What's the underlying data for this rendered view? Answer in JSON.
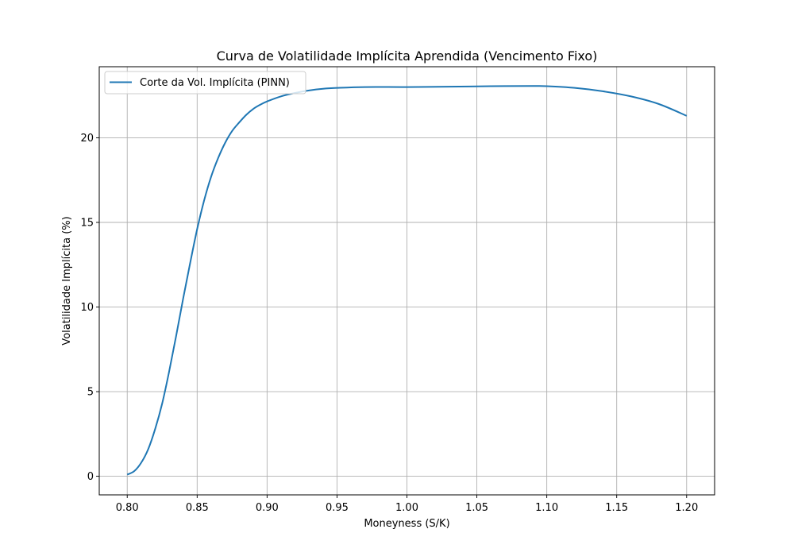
{
  "chart_data": {
    "type": "line",
    "title": "Curva de Volatilidade Implícita Aprendida (Vencimento Fixo)",
    "xlabel": "Moneyness (S/K)",
    "ylabel": "Volatilidade Implícita (%)",
    "xlim": [
      0.78,
      1.22
    ],
    "ylim": [
      -1.1,
      24.2
    ],
    "x_ticks": [
      0.8,
      0.85,
      0.9,
      0.95,
      1.0,
      1.05,
      1.1,
      1.15,
      1.2
    ],
    "x_tick_labels": [
      "0.80",
      "0.85",
      "0.90",
      "0.95",
      "1.00",
      "1.05",
      "1.10",
      "1.15",
      "1.20"
    ],
    "y_ticks": [
      0,
      5,
      10,
      15,
      20
    ],
    "y_tick_labels": [
      "0",
      "5",
      "10",
      "15",
      "20"
    ],
    "grid": true,
    "legend_position": "upper-left",
    "series": [
      {
        "name": "Corte da Vol. Implícita (PINN)",
        "color": "#1f77b4",
        "x": [
          0.8,
          0.805,
          0.81,
          0.815,
          0.82,
          0.825,
          0.83,
          0.835,
          0.84,
          0.845,
          0.85,
          0.855,
          0.86,
          0.865,
          0.87,
          0.875,
          0.88,
          0.885,
          0.89,
          0.895,
          0.9,
          0.91,
          0.92,
          0.93,
          0.94,
          0.95,
          0.97,
          1.0,
          1.03,
          1.06,
          1.09,
          1.1,
          1.12,
          1.14,
          1.16,
          1.18,
          1.2
        ],
        "y": [
          0.1,
          0.3,
          0.8,
          1.6,
          2.8,
          4.3,
          6.2,
          8.3,
          10.5,
          12.6,
          14.6,
          16.3,
          17.7,
          18.8,
          19.7,
          20.4,
          20.9,
          21.35,
          21.7,
          21.95,
          22.15,
          22.45,
          22.65,
          22.8,
          22.9,
          22.95,
          23.0,
          23.0,
          23.02,
          23.05,
          23.06,
          23.05,
          22.95,
          22.75,
          22.45,
          22.0,
          21.3
        ]
      }
    ]
  }
}
